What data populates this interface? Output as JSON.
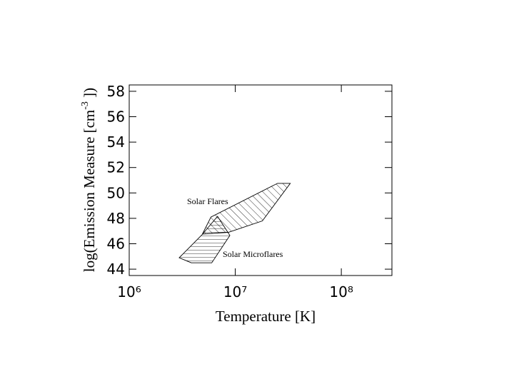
{
  "chart_data": {
    "type": "polygon",
    "xlabel": "Temperature  [K]",
    "ylabel": "log(Emission Measure  [cm",
    "ylabel_sup": "-3",
    "ylabel_end": " ])",
    "xscale": "log",
    "xlim": [
      1000000,
      300000000
    ],
    "xticks": [
      {
        "value": 1000000,
        "label": "10⁶"
      },
      {
        "value": 10000000,
        "label": "10⁷"
      },
      {
        "value": 100000000,
        "label": "10⁸"
      }
    ],
    "ylim": [
      43.5,
      58.5
    ],
    "yticks": [
      44,
      46,
      48,
      50,
      52,
      54,
      56,
      58
    ],
    "series": [
      {
        "name": "Solar Flares",
        "color": "#000000",
        "hatch": "diagonal",
        "x": [
          4900000,
          5900000,
          25000000,
          33000000,
          18000000,
          8600000
        ],
        "y": [
          46.76,
          48.1,
          50.75,
          50.75,
          47.8,
          46.9
        ]
      },
      {
        "name": "Solar Microflares",
        "color": "#000000",
        "hatch": "horizontal",
        "x": [
          2960000,
          3850000,
          6000000,
          8900000,
          6800000,
          4850000
        ],
        "y": [
          44.9,
          44.5,
          44.5,
          46.65,
          48.16,
          46.7
        ]
      }
    ]
  }
}
